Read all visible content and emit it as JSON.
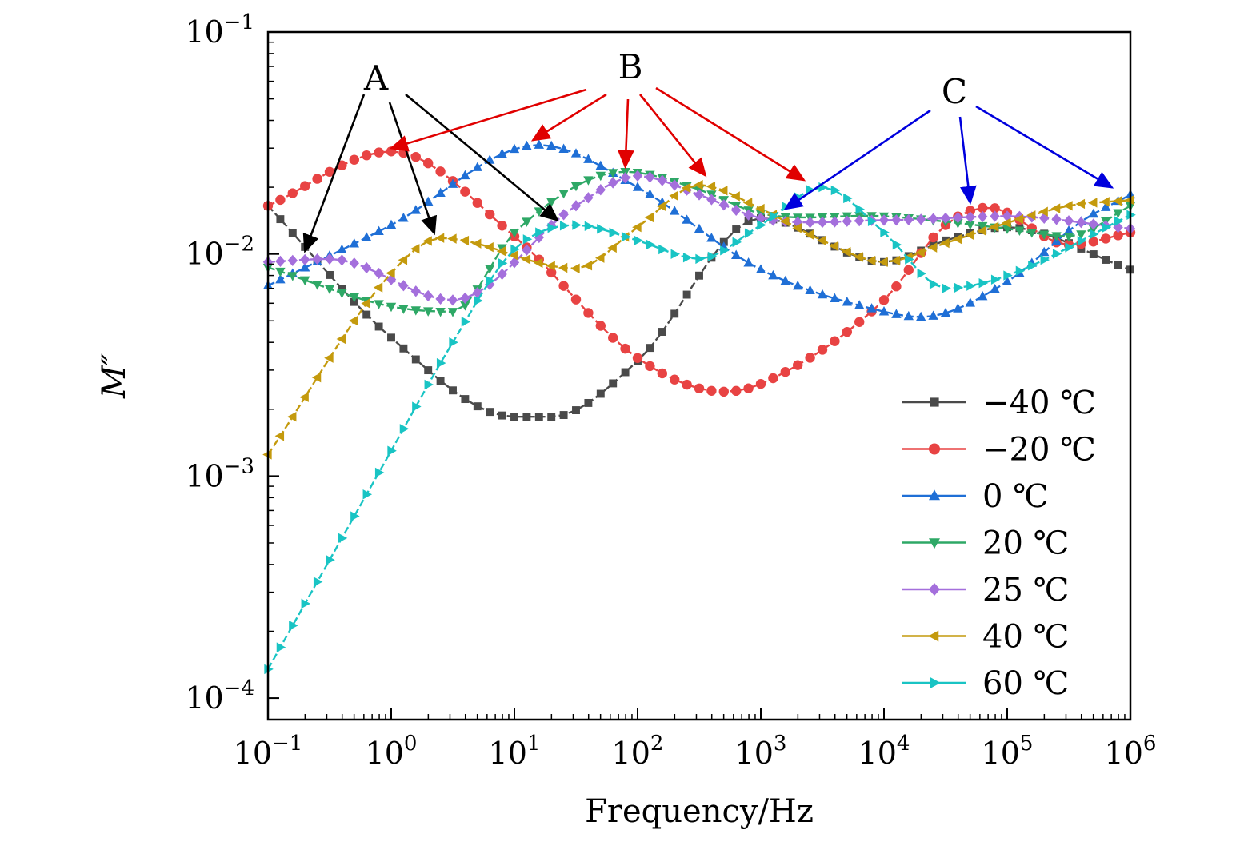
{
  "chart_data": {
    "type": "line",
    "title": "",
    "xlabel": "Frequency/Hz",
    "ylabel": "M″",
    "xscale": "log",
    "yscale": "log",
    "xlim": [
      0.1,
      1000000
    ],
    "ylim": [
      8e-05,
      0.1
    ],
    "grid": false,
    "legend_position": "bottom-right",
    "x_ticks": [
      {
        "base": "10",
        "exp": "−1"
      },
      {
        "base": "10",
        "exp": "0"
      },
      {
        "base": "10",
        "exp": "1"
      },
      {
        "base": "10",
        "exp": "2"
      },
      {
        "base": "10",
        "exp": "3"
      },
      {
        "base": "10",
        "exp": "4"
      },
      {
        "base": "10",
        "exp": "5"
      },
      {
        "base": "10",
        "exp": "6"
      }
    ],
    "y_ticks": [
      {
        "base": "10",
        "exp": "−1"
      },
      {
        "base": "10",
        "exp": "−2"
      },
      {
        "base": "10",
        "exp": "−3"
      },
      {
        "base": "10",
        "exp": "−4"
      }
    ],
    "series": [
      {
        "name": "−40 ℃",
        "color": "#4a4a4a",
        "marker": "square",
        "logx": [
          -1,
          0,
          1,
          1.3,
          2,
          3,
          4,
          4.5,
          5,
          6
        ],
        "values": [
          0.0165,
          0.0042,
          0.00185,
          0.00185,
          0.0033,
          0.0145,
          0.0092,
          0.0115,
          0.0132,
          0.0085
        ]
      },
      {
        "name": "−20 ℃",
        "color": "#e84343",
        "marker": "circle",
        "logx": [
          -1,
          0,
          1,
          2,
          2.7,
          3,
          4,
          4.5,
          4.85,
          5.5,
          6
        ],
        "values": [
          0.0165,
          0.029,
          0.012,
          0.0034,
          0.0024,
          0.0026,
          0.0062,
          0.0135,
          0.0162,
          0.011,
          0.0125
        ]
      },
      {
        "name": "0 ℃",
        "color": "#1f6fd6",
        "marker": "triangle-up",
        "logx": [
          -1,
          0,
          1.2,
          2,
          3,
          4,
          4.3,
          5,
          5.6,
          6
        ],
        "values": [
          0.0072,
          0.0135,
          0.031,
          0.02,
          0.0085,
          0.0055,
          0.0052,
          0.0075,
          0.014,
          0.0185
        ]
      },
      {
        "name": "20 ℃",
        "color": "#2ea866",
        "marker": "triangle-down",
        "logx": [
          -1,
          0,
          0.5,
          1,
          1.9,
          2.5,
          3,
          4,
          5,
          5.5,
          6
        ],
        "values": [
          0.0087,
          0.0058,
          0.0055,
          0.0125,
          0.0235,
          0.0195,
          0.0152,
          0.0148,
          0.013,
          0.012,
          0.0165
        ]
      },
      {
        "name": "25 ℃",
        "color": "#a46fdc",
        "marker": "diamond",
        "logx": [
          -1,
          -0.5,
          0.5,
          1.5,
          2,
          2.5,
          3,
          4,
          5,
          6
        ],
        "values": [
          0.0092,
          0.0095,
          0.0062,
          0.0165,
          0.0225,
          0.0185,
          0.0145,
          0.0142,
          0.0148,
          0.013
        ]
      },
      {
        "name": "40 ℃",
        "color": "#c49a0d",
        "marker": "triangle-left",
        "logx": [
          -1,
          0,
          0.4,
          1.5,
          2,
          2.5,
          3,
          3.5,
          4,
          4.5,
          5,
          5.5,
          6
        ],
        "values": [
          0.00125,
          0.0082,
          0.0118,
          0.0086,
          0.0132,
          0.0205,
          0.016,
          0.0115,
          0.0092,
          0.0112,
          0.0138,
          0.0165,
          0.0175
        ]
      },
      {
        "name": "60 ℃",
        "color": "#19c4c4",
        "marker": "triangle-right",
        "logx": [
          -1,
          0,
          0.5,
          1,
          1.5,
          2,
          2.5,
          3,
          3.5,
          4,
          4.5,
          5,
          6
        ],
        "values": [
          0.000135,
          0.0013,
          0.004,
          0.0105,
          0.0135,
          0.0115,
          0.0095,
          0.0135,
          0.02,
          0.0125,
          0.007,
          0.008,
          0.015
        ]
      }
    ],
    "annotations": [
      {
        "label": "A",
        "color": "#000000",
        "targets": [
          {
            "logx": -0.7,
            "y": 0.0098
          },
          {
            "logx": 0.35,
            "y": 0.0118
          },
          {
            "logx": 1.35,
            "y": 0.0135
          }
        ]
      },
      {
        "label": "B",
        "color": "#e00000",
        "targets": [
          {
            "logx": 0.0,
            "y": 0.0285
          },
          {
            "logx": 1.15,
            "y": 0.031
          },
          {
            "logx": 1.9,
            "y": 0.0235
          },
          {
            "logx": 2.55,
            "y": 0.0215
          },
          {
            "logx": 3.35,
            "y": 0.0205
          }
        ]
      },
      {
        "label": "C",
        "color": "#0000dd",
        "targets": [
          {
            "logx": 3.2,
            "y": 0.0152
          },
          {
            "logx": 4.7,
            "y": 0.0162
          },
          {
            "logx": 5.85,
            "y": 0.019
          }
        ]
      }
    ]
  }
}
